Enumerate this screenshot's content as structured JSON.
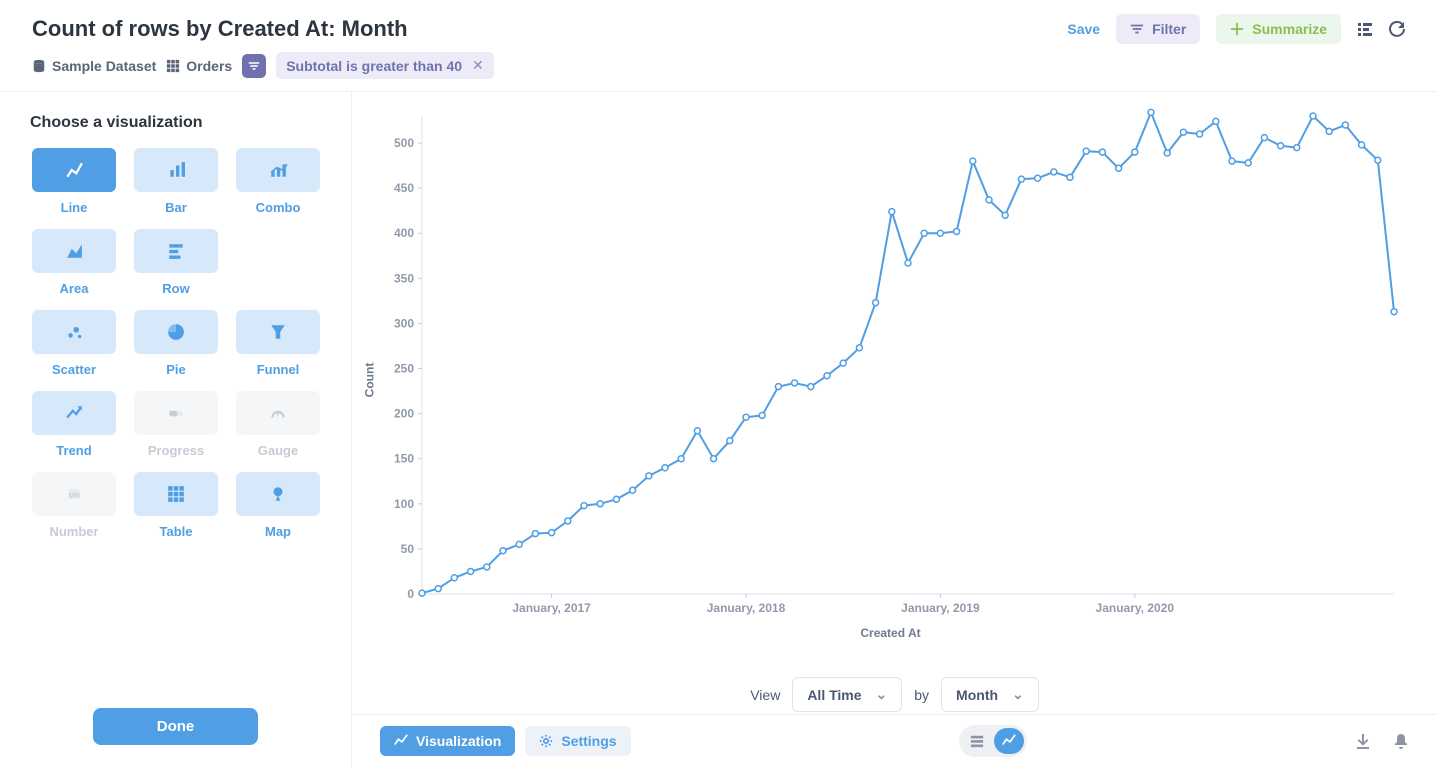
{
  "header": {
    "title": "Count of rows by Created At: Month",
    "database": "Sample Dataset",
    "table": "Orders",
    "filter_chip": "Subtotal is greater than 40",
    "save": "Save",
    "filter": "Filter",
    "summarize": "Summarize"
  },
  "sidebar": {
    "heading": "Choose a visualization",
    "items": [
      {
        "key": "line",
        "label": "Line",
        "active": true,
        "disabled": false
      },
      {
        "key": "bar",
        "label": "Bar",
        "active": false,
        "disabled": false
      },
      {
        "key": "combo",
        "label": "Combo",
        "active": false,
        "disabled": false
      },
      {
        "key": "area",
        "label": "Area",
        "active": false,
        "disabled": false
      },
      {
        "key": "row",
        "label": "Row",
        "active": false,
        "disabled": false
      },
      {
        "key": "blank1",
        "label": "",
        "active": false,
        "disabled": false,
        "blank": true
      },
      {
        "key": "scatter",
        "label": "Scatter",
        "active": false,
        "disabled": false
      },
      {
        "key": "pie",
        "label": "Pie",
        "active": false,
        "disabled": false
      },
      {
        "key": "funnel",
        "label": "Funnel",
        "active": false,
        "disabled": false
      },
      {
        "key": "trend",
        "label": "Trend",
        "active": false,
        "disabled": false
      },
      {
        "key": "progress",
        "label": "Progress",
        "active": false,
        "disabled": true
      },
      {
        "key": "gauge",
        "label": "Gauge",
        "active": false,
        "disabled": true
      },
      {
        "key": "number",
        "label": "Number",
        "active": false,
        "disabled": true
      },
      {
        "key": "table",
        "label": "Table",
        "active": false,
        "disabled": false
      },
      {
        "key": "map",
        "label": "Map",
        "active": false,
        "disabled": false
      }
    ],
    "done": "Done"
  },
  "chart": {
    "type": "line",
    "line_color": "#509ee3",
    "marker_fill": "#ffffff",
    "marker_stroke": "#509ee3",
    "marker_radius": 3,
    "line_width": 2,
    "background": "#ffffff",
    "ylabel": "Count",
    "xlabel": "Created At",
    "ylim": [
      0,
      530
    ],
    "ytick_step": 50,
    "y_ticks": [
      0,
      50,
      100,
      150,
      200,
      250,
      300,
      350,
      400,
      450,
      500
    ],
    "x_tick_labels": [
      {
        "index": 8,
        "label": "January, 2017"
      },
      {
        "index": 20,
        "label": "January, 2018"
      },
      {
        "index": 32,
        "label": "January, 2019"
      },
      {
        "index": 44,
        "label": "January, 2020"
      }
    ],
    "values": [
      1,
      6,
      18,
      25,
      30,
      48,
      55,
      67,
      68,
      81,
      98,
      100,
      105,
      115,
      131,
      140,
      150,
      181,
      150,
      170,
      196,
      198,
      230,
      234,
      230,
      242,
      256,
      273,
      323,
      424,
      367,
      400,
      400,
      402,
      480,
      437,
      420,
      460,
      461,
      468,
      462,
      491,
      490,
      472,
      490,
      534,
      489,
      512,
      510,
      524,
      480,
      478,
      506,
      497,
      495,
      530,
      513,
      520,
      498,
      481,
      313
    ]
  },
  "view": {
    "label": "View",
    "time": "All Time",
    "by": "by",
    "granularity": "Month"
  },
  "footer": {
    "visualization": "Visualization",
    "settings": "Settings"
  }
}
